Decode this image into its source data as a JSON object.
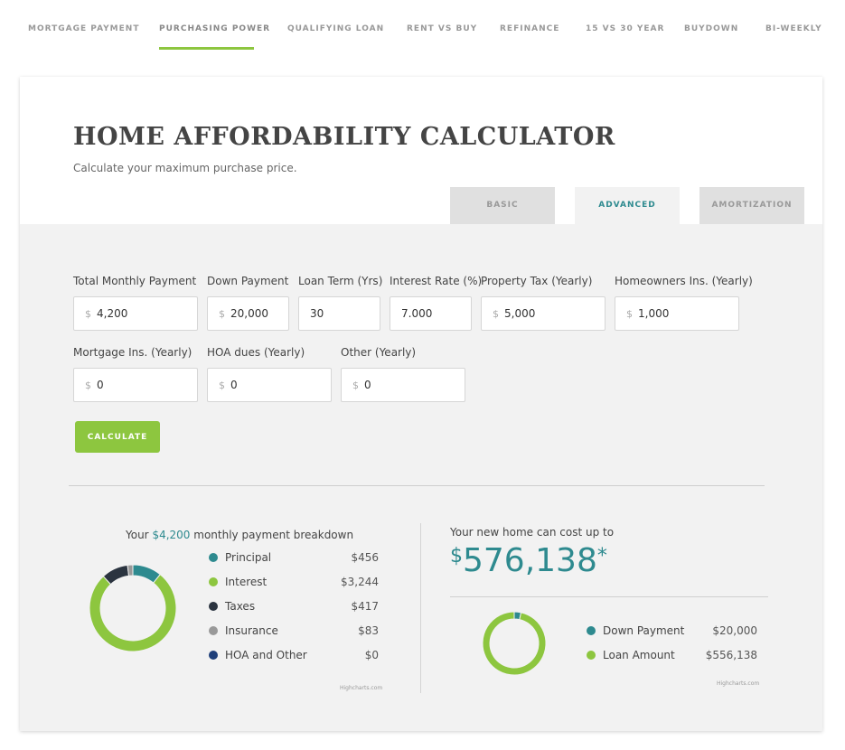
{
  "nav": {
    "items": [
      {
        "label": "MORTGAGE PAYMENT",
        "active": false
      },
      {
        "label": "PURCHASING POWER",
        "active": true
      },
      {
        "label": "QUALIFYING LOAN",
        "active": false
      },
      {
        "label": "RENT VS BUY",
        "active": false
      },
      {
        "label": "REFINANCE",
        "active": false
      },
      {
        "label": "15 VS 30 YEAR",
        "active": false
      },
      {
        "label": "BUYDOWN",
        "active": false
      },
      {
        "label": "BI-WEEKLY",
        "active": false
      }
    ]
  },
  "header": {
    "title": "HOME AFFORDABILITY CALCULATOR",
    "subtitle": "Calculate your maximum purchase price."
  },
  "tabs": [
    {
      "label": "BASIC",
      "active": false
    },
    {
      "label": "ADVANCED",
      "active": true
    },
    {
      "label": "AMORTIZATION",
      "active": false
    }
  ],
  "form": {
    "fields": [
      {
        "label": "Total Monthly Payment",
        "currency": "$",
        "value": "4,200"
      },
      {
        "label": "Down Payment",
        "currency": "$",
        "value": "20,000"
      },
      {
        "label": "Loan Term (Yrs)",
        "currency": "",
        "value": "30"
      },
      {
        "label": "Interest Rate (%)",
        "currency": "",
        "value": "7.000"
      },
      {
        "label": "Property Tax (Yearly)",
        "currency": "$",
        "value": "5,000"
      },
      {
        "label": "Homeowners Ins. (Yearly)",
        "currency": "$",
        "value": "1,000"
      },
      {
        "label": "Mortgage Ins. (Yearly)",
        "currency": "$",
        "value": "0"
      },
      {
        "label": "HOA dues (Yearly)",
        "currency": "$",
        "value": "0"
      },
      {
        "label": "Other (Yearly)",
        "currency": "$",
        "value": "0"
      }
    ],
    "calculate_label": "CALCULATE"
  },
  "breakdown": {
    "title_prefix": "Your ",
    "title_amount": "$4,200",
    "title_suffix": " monthly payment breakdown",
    "items": [
      {
        "label": "Principal",
        "value": "$456",
        "color": "#2e8a8f"
      },
      {
        "label": "Interest",
        "value": "$3,244",
        "color": "#8dc63f"
      },
      {
        "label": "Taxes",
        "value": "$417",
        "color": "#2b3440"
      },
      {
        "label": "Insurance",
        "value": "$83",
        "color": "#999999"
      },
      {
        "label": "HOA and Other",
        "value": "$0",
        "color": "#1f3f7a"
      }
    ],
    "credit": "Highcharts.com"
  },
  "result": {
    "label": "Your new home can cost up to",
    "symbol": "$",
    "amount": "576,138",
    "asterisk": "*",
    "items": [
      {
        "label": "Down Payment",
        "value": "$20,000",
        "color": "#2e8a8f"
      },
      {
        "label": "Loan Amount",
        "value": "$556,138",
        "color": "#8dc63f"
      }
    ],
    "credit": "Highcharts.com"
  },
  "chart_data": [
    {
      "type": "pie",
      "categories": [
        "Principal",
        "Interest",
        "Taxes",
        "Insurance",
        "HOA and Other"
      ],
      "values": [
        456,
        3244,
        417,
        83,
        0
      ]
    },
    {
      "type": "pie",
      "categories": [
        "Down Payment",
        "Loan Amount"
      ],
      "values": [
        20000,
        556138
      ]
    }
  ]
}
